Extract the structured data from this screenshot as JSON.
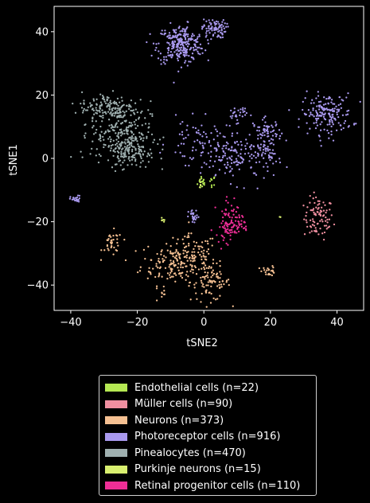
{
  "chart_data": {
    "type": "scatter",
    "xlabel": "tSNE2",
    "ylabel": "tSNE1",
    "xlim": [
      -45,
      48
    ],
    "ylim": [
      -48,
      48
    ],
    "xticks": [
      -40,
      -20,
      0,
      20,
      40
    ],
    "yticks": [
      -40,
      -20,
      0,
      20,
      40
    ],
    "legend_position": "below",
    "series": [
      {
        "name": "Endothelial cells (n=22)",
        "color": "#b5e853",
        "clusters": [
          [
            -0.5,
            -7.5,
            0.7,
            1.2,
            14
          ],
          [
            2.5,
            -7,
            0.5,
            0.8,
            8
          ]
        ]
      },
      {
        "name": "Müller cells (n=90)",
        "color": "#f08fa0",
        "clusters": [
          [
            34.5,
            -19,
            2.2,
            3.3,
            90
          ]
        ]
      },
      {
        "name": "Neurons (n=373)",
        "color": "#f5c092",
        "clusters": [
          [
            -9,
            -33,
            5,
            3.5,
            160
          ],
          [
            2,
            -39,
            3,
            3,
            90
          ],
          [
            -3,
            -30,
            3.5,
            3,
            60
          ],
          [
            -27.5,
            -27,
            1.5,
            2,
            35
          ],
          [
            -12,
            -42.5,
            0.6,
            0.7,
            6
          ],
          [
            19.5,
            -35.5,
            1,
            0.8,
            22
          ]
        ]
      },
      {
        "name": "Photoreceptor cells (n=916)",
        "color": "#a999ee",
        "clusters": [
          [
            -7,
            36,
            3.5,
            3,
            270
          ],
          [
            3,
            41,
            1.8,
            1.5,
            80
          ],
          [
            -38.5,
            -13,
            0.8,
            0.6,
            22
          ],
          [
            -3,
            -18.5,
            0.8,
            1.1,
            25
          ],
          [
            37,
            14,
            3.8,
            3.2,
            170
          ],
          [
            20,
            1,
            1.5,
            1.3,
            30
          ],
          [
            19,
            8,
            2.2,
            2.2,
            70
          ],
          [
            10,
            14,
            1.5,
            1.3,
            30
          ],
          [
            10,
            0,
            5.5,
            3.8,
            140
          ],
          [
            -1,
            5,
            5,
            3.5,
            79
          ]
        ]
      },
      {
        "name": "Pinealocytes (n=470)",
        "color": "#9fb0b0",
        "clusters": [
          [
            -25,
            8,
            4.5,
            5,
            260
          ],
          [
            -29,
            16,
            4,
            2.5,
            120
          ],
          [
            -21,
            2,
            3,
            2.5,
            90
          ]
        ]
      },
      {
        "name": "Purkinje neurons (n=15)",
        "color": "#d8ef6f",
        "clusters": [
          [
            -12.5,
            -19.5,
            0.3,
            0.3,
            7
          ],
          [
            23,
            -18.5,
            0.1,
            0.1,
            2
          ],
          [
            -1,
            -7.5,
            0.4,
            0.6,
            6
          ]
        ]
      },
      {
        "name": "Retinal progenitor cells (n=110)",
        "color": "#ee2e96",
        "clusters": [
          [
            9.5,
            -21,
            2,
            1.6,
            50
          ],
          [
            7,
            -18,
            1.7,
            3.5,
            45
          ],
          [
            6.5,
            -24,
            0.7,
            1.5,
            15
          ]
        ]
      }
    ]
  }
}
